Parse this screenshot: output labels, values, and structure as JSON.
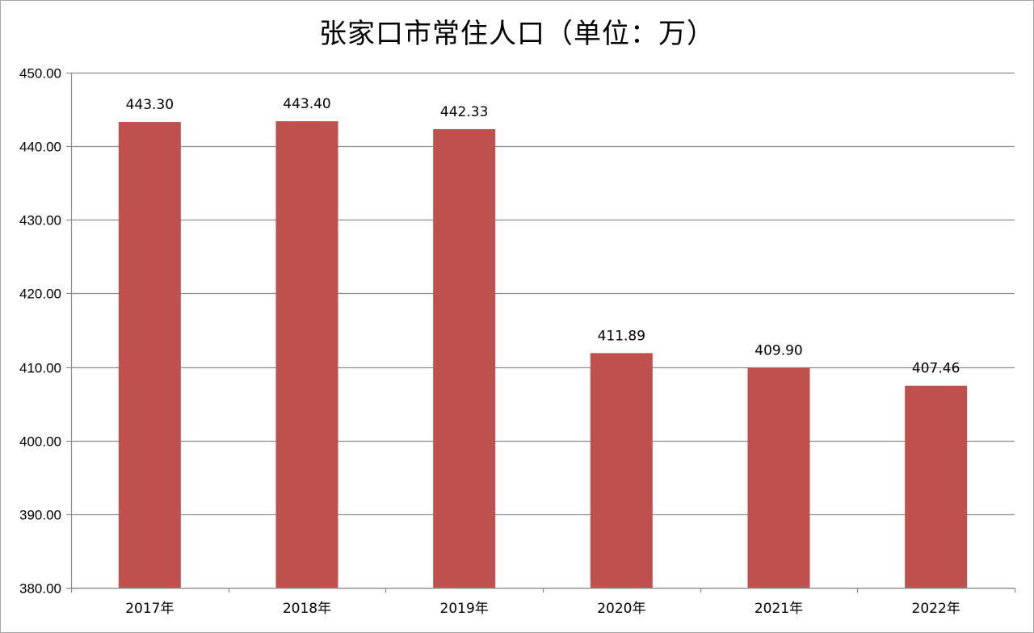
{
  "chart_data": {
    "type": "bar",
    "title": "张家口市常住人口（单位：万）",
    "categories": [
      "2017年",
      "2018年",
      "2019年",
      "2020年",
      "2021年",
      "2022年"
    ],
    "values": [
      443.3,
      443.4,
      442.33,
      411.89,
      409.9,
      407.46
    ],
    "data_labels": [
      "443.30",
      "443.40",
      "442.33",
      "411.89",
      "409.90",
      "407.46"
    ],
    "ylim": [
      380,
      450
    ],
    "yticks": [
      380,
      390,
      400,
      410,
      420,
      430,
      440,
      450
    ],
    "ytick_labels": [
      "380.00",
      "390.00",
      "400.00",
      "410.00",
      "420.00",
      "430.00",
      "440.00",
      "450.00"
    ],
    "xlabel": "",
    "ylabel": "",
    "grid": true,
    "legend": "none",
    "bar_color": "#c0504d",
    "grid_color": "#8c8c8c"
  }
}
